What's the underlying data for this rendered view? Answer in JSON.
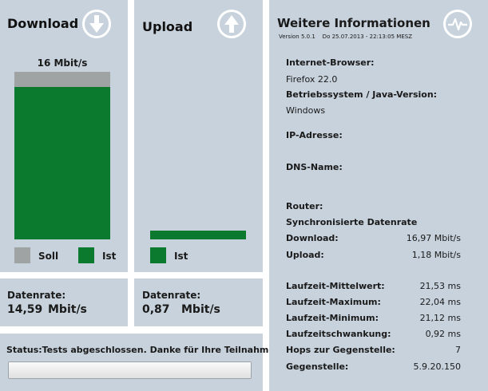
{
  "download": {
    "title": "Download",
    "icon": "arrow-down-circle-icon",
    "speed_label": "16 Mbit/s",
    "soll_fraction": 1.0,
    "ist_fraction": 0.91,
    "legend_soll": "Soll",
    "legend_ist": "Ist",
    "rate_label": "Datenrate:",
    "rate_value": "14,59",
    "rate_unit": "Mbit/s"
  },
  "upload": {
    "title": "Upload",
    "icon": "arrow-up-circle-icon",
    "ist_fraction": 0.05,
    "legend_ist": "Ist",
    "rate_label": "Datenrate:",
    "rate_value": "0,87",
    "rate_unit": "Mbit/s"
  },
  "status": {
    "text": "Status:Tests abgeschlossen. Danke für Ihre Teilnahme!",
    "progress": 1.0
  },
  "info": {
    "title": "Weitere Informationen",
    "icon": "pulse-circle-icon",
    "version": "Version 5.0.1    Do 25.07.2013 - 22:13:05 MESZ",
    "browser_label": "Internet-Browser:",
    "browser_value": "Firefox 22.0",
    "os_label": "Betriebssystem / Java-Version:",
    "os_value": "Windows",
    "ip_label": "IP-Adresse:",
    "dns_label": "DNS-Name:",
    "router_label": "Router:",
    "sync_label": "Synchronisierte Datenrate",
    "rows": [
      {
        "label": "Download:",
        "value": "16,97 Mbit/s"
      },
      {
        "label": "Upload:",
        "value": "1,18 Mbit/s"
      }
    ],
    "stats": [
      {
        "label": "Laufzeit-Mittelwert:",
        "value": "21,53 ms"
      },
      {
        "label": "Laufzeit-Maximum:",
        "value": "22,04 ms"
      },
      {
        "label": "Laufzeit-Minimum:",
        "value": "21,12 ms"
      },
      {
        "label": "Laufzeitschwankung:",
        "value": "0,92 ms"
      },
      {
        "label": "Hops zur Gegenstelle:",
        "value": "7"
      },
      {
        "label": "Gegenstelle:",
        "value": "5.9.20.150"
      }
    ]
  },
  "colors": {
    "panel": "#c7d2dc",
    "ist": "#0c7a2e",
    "soll": "#a0a3a4"
  }
}
